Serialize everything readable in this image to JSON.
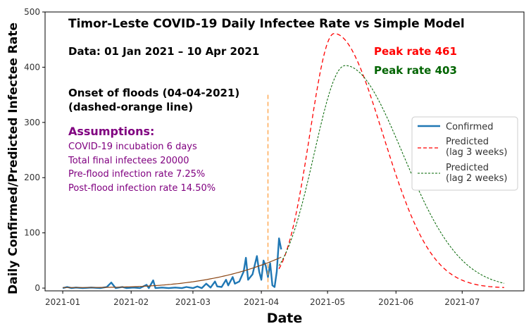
{
  "chart_data": {
    "type": "line",
    "title": "Timor-Leste COVID-19 Daily Infectee Rate vs Simple Model",
    "date_range_label": "Data: 01 Jan 2021 – 10 Apr 2021",
    "xlabel": "Date",
    "ylabel": "Daily Confirmed/Predicted Infectee Rate",
    "x_ticks": [
      "2021-01",
      "2021-02",
      "2021-03",
      "2021-04",
      "2021-05",
      "2021-06",
      "2021-07"
    ],
    "y_ticks": [
      0,
      100,
      200,
      300,
      400,
      500
    ],
    "xlim": [
      "2020-12-24",
      "2021-07-29"
    ],
    "ylim": [
      -5,
      500
    ],
    "grid": false,
    "legend_position": "right",
    "legend": [
      {
        "label": "Confirmed",
        "color": "#1f77b4",
        "style": "solid"
      },
      {
        "label": "Predicted",
        "label2": "(lag 3 weeks)",
        "color": "#ff0000",
        "style": "dashed"
      },
      {
        "label": "Predicted",
        "label2": "(lag 2 weeks)",
        "color": "#006400",
        "style": "dashed"
      }
    ],
    "annotations": {
      "peak_red": "Peak rate 461",
      "peak_green": "Peak rate 403",
      "flood_line1": "Onset of floods (04-04-2021)",
      "flood_line2": "(dashed-orange line)",
      "assumptions_title": "Assumptions:",
      "assumptions": [
        "COVID-19 incubation 6 days",
        "Total final infectees 20000",
        "Pre-flood infection rate 7.25%",
        "Post-flood infection rate 14.50%"
      ]
    },
    "flood_onset": {
      "date": "2021-04-04",
      "y_top": 350,
      "color": "#ffa040"
    },
    "series": [
      {
        "name": "Confirmed",
        "color": "#1f77b4",
        "points": [
          [
            "2021-01-01",
            0
          ],
          [
            "2021-01-03",
            2
          ],
          [
            "2021-01-05",
            0
          ],
          [
            "2021-01-07",
            1
          ],
          [
            "2021-01-10",
            0
          ],
          [
            "2021-01-14",
            1
          ],
          [
            "2021-01-18",
            0
          ],
          [
            "2021-01-21",
            2
          ],
          [
            "2021-01-23",
            10
          ],
          [
            "2021-01-25",
            0
          ],
          [
            "2021-01-28",
            2
          ],
          [
            "2021-01-30",
            0
          ],
          [
            "2021-02-02",
            1
          ],
          [
            "2021-02-05",
            0
          ],
          [
            "2021-02-08",
            6
          ],
          [
            "2021-02-09",
            0
          ],
          [
            "2021-02-11",
            14
          ],
          [
            "2021-02-12",
            0
          ],
          [
            "2021-02-15",
            1
          ],
          [
            "2021-02-18",
            0
          ],
          [
            "2021-02-21",
            1
          ],
          [
            "2021-02-24",
            0
          ],
          [
            "2021-02-26",
            2
          ],
          [
            "2021-03-01",
            0
          ],
          [
            "2021-03-03",
            3
          ],
          [
            "2021-03-05",
            0
          ],
          [
            "2021-03-07",
            8
          ],
          [
            "2021-03-09",
            1
          ],
          [
            "2021-03-11",
            12
          ],
          [
            "2021-03-12",
            3
          ],
          [
            "2021-03-14",
            2
          ],
          [
            "2021-03-16",
            15
          ],
          [
            "2021-03-17",
            5
          ],
          [
            "2021-03-19",
            20
          ],
          [
            "2021-03-20",
            8
          ],
          [
            "2021-03-22",
            12
          ],
          [
            "2021-03-24",
            30
          ],
          [
            "2021-03-25",
            55
          ],
          [
            "2021-03-26",
            15
          ],
          [
            "2021-03-28",
            25
          ],
          [
            "2021-03-30",
            58
          ],
          [
            "2021-03-31",
            30
          ],
          [
            "2021-04-01",
            15
          ],
          [
            "2021-04-02",
            50
          ],
          [
            "2021-04-03",
            40
          ],
          [
            "2021-04-04",
            20
          ],
          [
            "2021-04-05",
            45
          ],
          [
            "2021-04-06",
            5
          ],
          [
            "2021-04-07",
            2
          ],
          [
            "2021-04-08",
            30
          ],
          [
            "2021-04-09",
            90
          ],
          [
            "2021-04-10",
            70
          ]
        ]
      },
      {
        "name": "Predicted",
        "color": "#ff0000",
        "peak_date": "2021-05-04",
        "peak": 461
      },
      {
        "name": "Predicted",
        "color": "#006400",
        "peak_date": "2021-05-09",
        "peak": 403
      }
    ]
  }
}
